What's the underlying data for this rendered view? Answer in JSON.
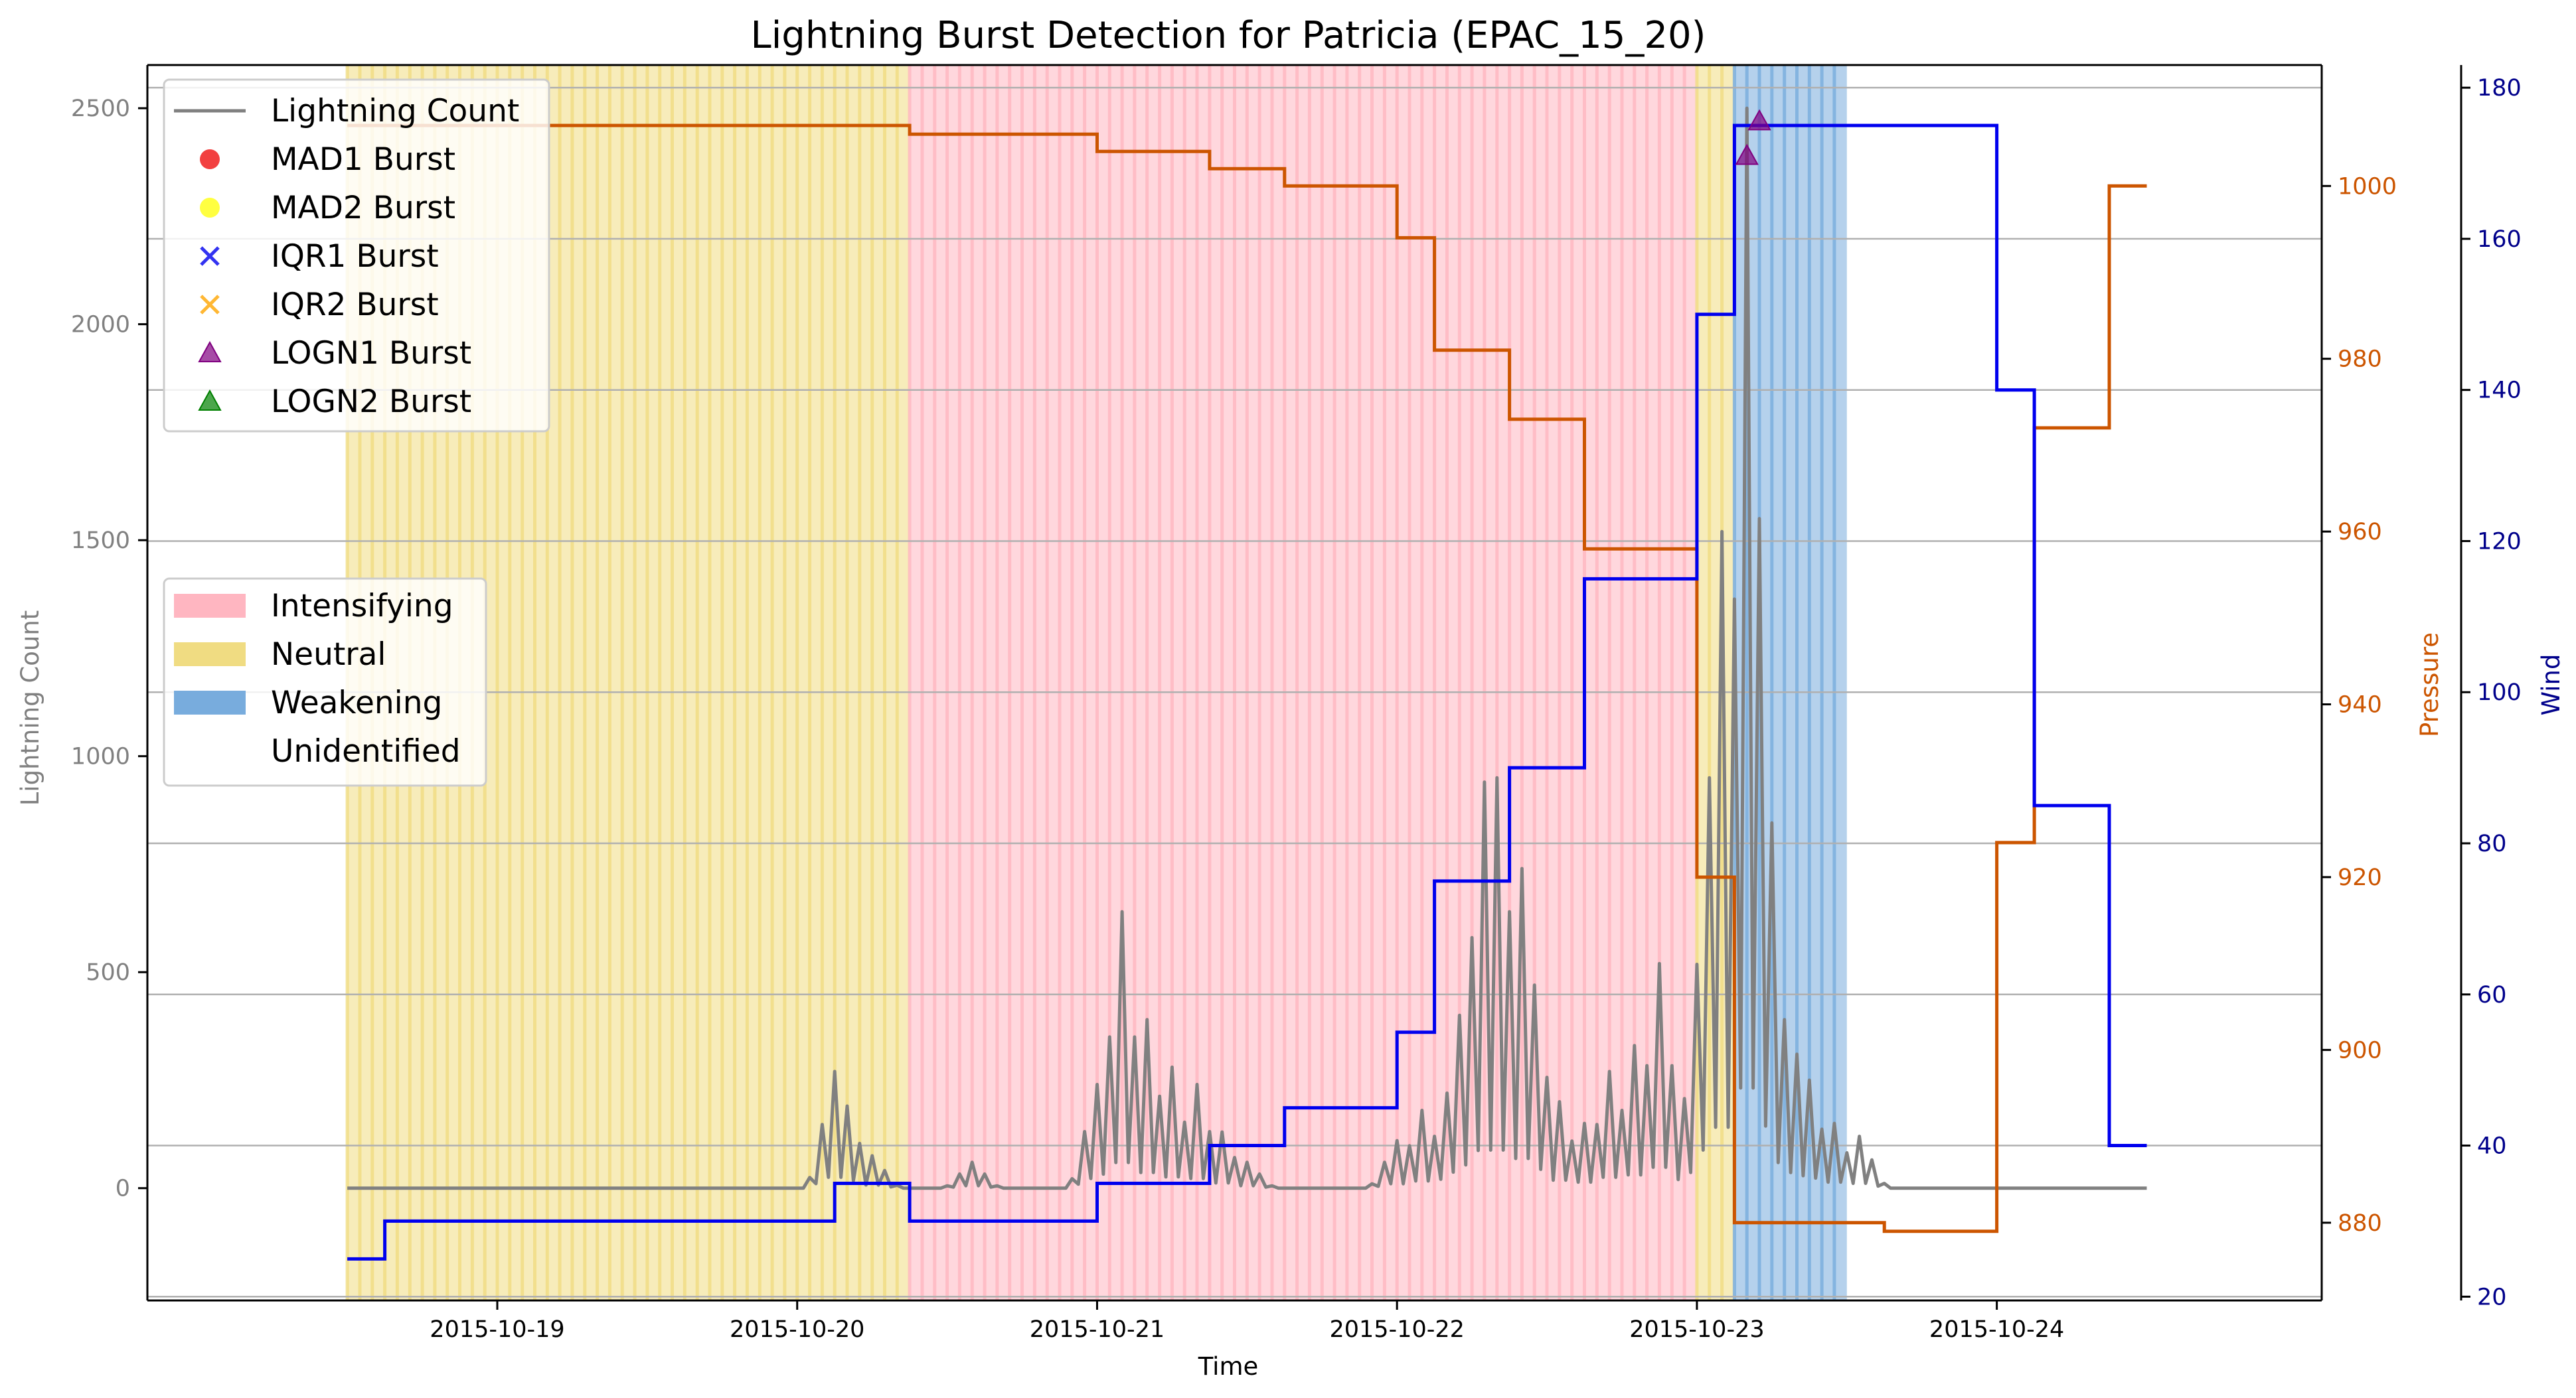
{
  "chart_data": {
    "type": "line",
    "title": "Lightning Burst Detection for Patricia (EPAC_15_20)",
    "xlabel": "Time",
    "ylabel_left": "Lightning Count",
    "ylabel_pressure": "Pressure",
    "ylabel_wind": "Wind",
    "x_range": [
      "2015-10-17T20:00",
      "2015-10-25T02:00"
    ],
    "ylim_left": [
      -260,
      2600
    ],
    "ylim_pressure": [
      871,
      1014
    ],
    "ylim_wind": [
      19.5,
      183
    ],
    "x_ticks": [
      "2015-10-19",
      "2015-10-20",
      "2015-10-21",
      "2015-10-22",
      "2015-10-23",
      "2015-10-24"
    ],
    "y_ticks_left": [
      "0",
      "500",
      "1000",
      "1500",
      "2000",
      "2500"
    ],
    "y_ticks_pressure": [
      "880",
      "900",
      "920",
      "940",
      "960",
      "980",
      "1000"
    ],
    "y_ticks_wind": [
      "20",
      "40",
      "60",
      "80",
      "100",
      "120",
      "140",
      "160",
      "180"
    ],
    "grid": "horizontal lines at wind ticks",
    "colors": {
      "lightning": "#808080",
      "pressure": "#cc5500",
      "wind": "#0000ee",
      "intensifying": "#ffb6c1",
      "neutral": "#f0dc82",
      "weakening": "#78acdd",
      "mad1": "#ee0000",
      "mad2": "#ffff00",
      "iqr1": "#0000ee",
      "iqr2": "#ffa500",
      "logn1": "#800080",
      "logn2": "#008000",
      "pressure_ticks": "#cc5500",
      "wind_ticks": "#00008b",
      "left_ticks": "#808080"
    },
    "phases": [
      {
        "name": "Neutral",
        "start": "2015-10-18T12:00",
        "end": "2015-10-20T09:00"
      },
      {
        "name": "Intensifying",
        "start": "2015-10-20T09:00",
        "end": "2015-10-23T00:00"
      },
      {
        "name": "Neutral",
        "start": "2015-10-23T00:00",
        "end": "2015-10-23T03:00"
      },
      {
        "name": "Weakening",
        "start": "2015-10-23T03:00",
        "end": "2015-10-23T12:00"
      }
    ],
    "legend": {
      "placement": "upper-left",
      "series": [
        {
          "label": "Lightning Count",
          "marker": "line",
          "color": "#808080"
        },
        {
          "label": "MAD1 Burst",
          "marker": "circle",
          "color": "#ee0000"
        },
        {
          "label": "MAD2 Burst",
          "marker": "circle",
          "color": "#ffff00"
        },
        {
          "label": "IQR1 Burst",
          "marker": "x",
          "color": "#0000ee"
        },
        {
          "label": "IQR2 Burst",
          "marker": "x",
          "color": "#ffa500"
        },
        {
          "label": "LOGN1 Burst",
          "marker": "triangle",
          "color": "#800080"
        },
        {
          "label": "LOGN2 Burst",
          "marker": "triangle",
          "color": "#008000"
        }
      ],
      "placement_phase": "middle-left",
      "phases": [
        {
          "label": "Intensifying",
          "color": "#ffb6c1"
        },
        {
          "label": "Neutral",
          "color": "#f0dc82"
        },
        {
          "label": "Weakening",
          "color": "#78acdd"
        },
        {
          "label": "Unidentified",
          "color": "none"
        }
      ]
    },
    "pressure_series": {
      "name": "Pressure",
      "points": [
        [
          "2015-10-18T12:00",
          1007
        ],
        [
          "2015-10-20T09:00",
          1007
        ],
        [
          "2015-10-20T09:00",
          1006
        ],
        [
          "2015-10-21T00:00",
          1006
        ],
        [
          "2015-10-21T00:00",
          1004
        ],
        [
          "2015-10-21T09:00",
          1004
        ],
        [
          "2015-10-21T09:00",
          1002
        ],
        [
          "2015-10-21T15:00",
          1002
        ],
        [
          "2015-10-21T15:00",
          1000
        ],
        [
          "2015-10-22T00:00",
          1000
        ],
        [
          "2015-10-22T00:00",
          994
        ],
        [
          "2015-10-22T03:00",
          994
        ],
        [
          "2015-10-22T03:00",
          981
        ],
        [
          "2015-10-22T09:00",
          981
        ],
        [
          "2015-10-22T09:00",
          973
        ],
        [
          "2015-10-22T15:00",
          973
        ],
        [
          "2015-10-22T15:00",
          958
        ],
        [
          "2015-10-23T00:00",
          958
        ],
        [
          "2015-10-23T00:00",
          920
        ],
        [
          "2015-10-23T03:00",
          920
        ],
        [
          "2015-10-23T03:00",
          880
        ],
        [
          "2015-10-23T15:00",
          880
        ],
        [
          "2015-10-23T15:00",
          879
        ],
        [
          "2015-10-24T00:00",
          879
        ],
        [
          "2015-10-24T00:00",
          924
        ],
        [
          "2015-10-24T03:00",
          924
        ],
        [
          "2015-10-24T03:00",
          972
        ],
        [
          "2015-10-24T09:00",
          972
        ],
        [
          "2015-10-24T09:00",
          1000
        ],
        [
          "2015-10-24T12:00",
          1000
        ]
      ]
    },
    "wind_series": {
      "name": "Wind",
      "points": [
        [
          "2015-10-18T12:00",
          25
        ],
        [
          "2015-10-18T15:00",
          25
        ],
        [
          "2015-10-18T15:00",
          30
        ],
        [
          "2015-10-20T03:00",
          30
        ],
        [
          "2015-10-20T03:00",
          35
        ],
        [
          "2015-10-20T09:00",
          35
        ],
        [
          "2015-10-20T09:00",
          30
        ],
        [
          "2015-10-21T00:00",
          30
        ],
        [
          "2015-10-21T00:00",
          35
        ],
        [
          "2015-10-21T09:00",
          35
        ],
        [
          "2015-10-21T09:00",
          40
        ],
        [
          "2015-10-21T15:00",
          40
        ],
        [
          "2015-10-21T15:00",
          45
        ],
        [
          "2015-10-22T00:00",
          45
        ],
        [
          "2015-10-22T00:00",
          55
        ],
        [
          "2015-10-22T03:00",
          55
        ],
        [
          "2015-10-22T03:00",
          75
        ],
        [
          "2015-10-22T09:00",
          75
        ],
        [
          "2015-10-22T09:00",
          90
        ],
        [
          "2015-10-22T15:00",
          90
        ],
        [
          "2015-10-22T15:00",
          115
        ],
        [
          "2015-10-23T00:00",
          115
        ],
        [
          "2015-10-23T00:00",
          150
        ],
        [
          "2015-10-23T03:00",
          150
        ],
        [
          "2015-10-23T03:00",
          175
        ],
        [
          "2015-10-24T00:00",
          175
        ],
        [
          "2015-10-24T00:00",
          140
        ],
        [
          "2015-10-24T03:00",
          140
        ],
        [
          "2015-10-24T03:00",
          85
        ],
        [
          "2015-10-24T09:00",
          85
        ],
        [
          "2015-10-24T09:00",
          40
        ],
        [
          "2015-10-24T12:00",
          40
        ]
      ]
    },
    "lightning_series": {
      "name": "Lightning Count",
      "start": "2015-10-18T12:00",
      "end": "2015-10-24T12:00",
      "peaks": [
        {
          "t": "2015-10-20T03:00",
          "v": 270
        },
        {
          "t": "2015-10-20T04:00",
          "v": 190
        },
        {
          "t": "2015-10-20T06:00",
          "v": 75
        },
        {
          "t": "2015-10-20T14:00",
          "v": 60
        },
        {
          "t": "2015-10-21T00:00",
          "v": 240
        },
        {
          "t": "2015-10-21T01:00",
          "v": 350
        },
        {
          "t": "2015-10-21T02:00",
          "v": 640
        },
        {
          "t": "2015-10-21T03:00",
          "v": 350
        },
        {
          "t": "2015-10-21T04:00",
          "v": 390
        },
        {
          "t": "2015-10-21T06:00",
          "v": 280
        },
        {
          "t": "2015-10-21T08:00",
          "v": 240
        },
        {
          "t": "2015-10-21T10:00",
          "v": 130
        },
        {
          "t": "2015-10-21T12:00",
          "v": 60
        },
        {
          "t": "2015-10-22T00:00",
          "v": 110
        },
        {
          "t": "2015-10-22T02:00",
          "v": 180
        },
        {
          "t": "2015-10-22T04:00",
          "v": 220
        },
        {
          "t": "2015-10-22T05:00",
          "v": 400
        },
        {
          "t": "2015-10-22T06:00",
          "v": 580
        },
        {
          "t": "2015-10-22T07:00",
          "v": 940
        },
        {
          "t": "2015-10-22T08:00",
          "v": 950
        },
        {
          "t": "2015-10-22T09:00",
          "v": 640
        },
        {
          "t": "2015-10-22T10:00",
          "v": 740
        },
        {
          "t": "2015-10-22T11:00",
          "v": 470
        },
        {
          "t": "2015-10-22T13:00",
          "v": 200
        },
        {
          "t": "2015-10-22T15:00",
          "v": 150
        },
        {
          "t": "2015-10-22T17:00",
          "v": 270
        },
        {
          "t": "2015-10-22T19:00",
          "v": 330
        },
        {
          "t": "2015-10-22T21:00",
          "v": 520
        },
        {
          "t": "2015-10-23T00:00",
          "v": 380
        },
        {
          "t": "2015-10-23T01:00",
          "v": 950
        },
        {
          "t": "2015-10-23T02:00",
          "v": 1520
        },
        {
          "t": "2015-10-23T03:00",
          "v": 1050
        },
        {
          "t": "2015-10-23T04:00",
          "v": 2500
        },
        {
          "t": "2015-10-23T05:00",
          "v": 1550
        },
        {
          "t": "2015-10-23T06:00",
          "v": 590
        },
        {
          "t": "2015-10-23T07:00",
          "v": 390
        },
        {
          "t": "2015-10-23T08:00",
          "v": 310
        },
        {
          "t": "2015-10-23T09:00",
          "v": 250
        },
        {
          "t": "2015-10-23T11:00",
          "v": 150
        },
        {
          "t": "2015-10-23T13:00",
          "v": 120
        },
        {
          "t": "2015-10-23T15:00",
          "v": 0
        }
      ]
    },
    "bursts": [
      {
        "type": "LOGN1 Burst",
        "t": "2015-10-23T04:00",
        "v": 2390
      },
      {
        "type": "LOGN1 Burst",
        "t": "2015-10-23T05:00",
        "v": 2470
      }
    ]
  }
}
